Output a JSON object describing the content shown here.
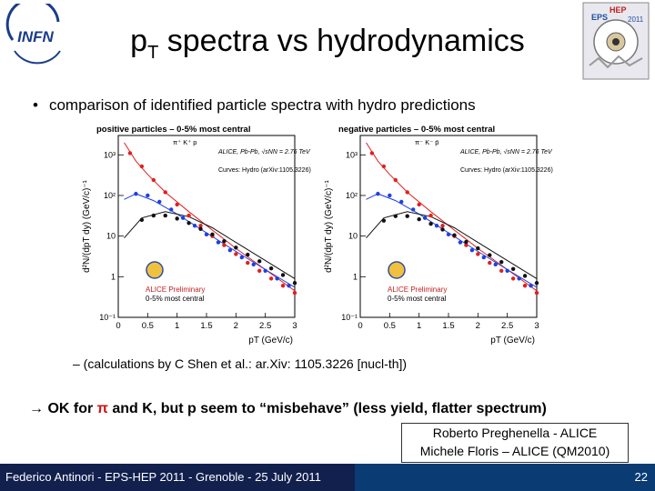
{
  "slide": {
    "title_main": "p",
    "title_sub": "T",
    "title_rest": " spectra vs hydrodynamics",
    "bullet": "comparison of identified particle spectra with hydro predictions",
    "bullet_marker": "•",
    "sub_bullet": "–  (calculations by C Shen et al.: ar.Xiv: 1105.3226 [nucl-th])",
    "conclusion": {
      "arrow": "→",
      "part1": " OK for ",
      "pi": "π",
      "part2": " and K, but p seem to “misbehave” (less yield, flatter spectrum)"
    },
    "credit_line1": "Roberto Preghenella - ALICE",
    "credit_line2": "Michele Floris – ALICE (QM2010)",
    "footer": "Federico Antinori - EPS-HEP 2011 - Grenoble - 25 July 2011",
    "page_number": "22"
  },
  "logos": {
    "infn_text": "INFN",
    "eps_text": "EPS",
    "hep_text": "HEP",
    "year_text": "2011"
  },
  "chart_data": [
    {
      "type": "scatter",
      "title": "positive particles – 0-5% most central",
      "legend": "π⁺ K⁺ p",
      "annotation1": "ALICE, Pb-Pb, √sNN = 2.76 TeV",
      "annotation2": "Curves: Hydro (arXiv:1105.3226)",
      "annotation3": "ALICE Preliminary",
      "annotation4": "0-5% most central",
      "xlabel": "pT (GeV/c)",
      "ylabel": "d²N/(dpT dy) (GeV/c)⁻¹",
      "x_ticks": [
        "0",
        "0.5",
        "1",
        "1.5",
        "2",
        "2.5",
        "3"
      ],
      "y_ticks": [
        "10⁻¹",
        "1",
        "10",
        "10²",
        "10³"
      ],
      "xlim": [
        0,
        3
      ],
      "ylim": [
        0.1,
        3000
      ],
      "log_y": true,
      "series": [
        {
          "name": "π⁺",
          "color": "#e02020",
          "x": [
            0.2,
            0.4,
            0.6,
            0.8,
            1.0,
            1.2,
            1.4,
            1.6,
            1.8,
            2.0,
            2.2,
            2.4,
            2.6,
            2.8,
            3.0
          ],
          "y": [
            1100,
            520,
            240,
            120,
            60,
            32,
            18,
            10,
            6,
            3.6,
            2.2,
            1.4,
            0.9,
            0.6,
            0.4
          ]
        },
        {
          "name": "K⁺",
          "color": "#2040e0",
          "x": [
            0.3,
            0.5,
            0.7,
            0.9,
            1.1,
            1.3,
            1.5,
            1.7,
            1.9,
            2.1,
            2.3,
            2.5,
            2.7,
            2.9
          ],
          "y": [
            110,
            100,
            70,
            45,
            28,
            18,
            11,
            7,
            4.5,
            3,
            2,
            1.4,
            0.9,
            0.6
          ]
        },
        {
          "name": "p",
          "color": "#111111",
          "x": [
            0.4,
            0.6,
            0.8,
            1.0,
            1.2,
            1.4,
            1.6,
            1.8,
            2.0,
            2.2,
            2.4,
            2.6,
            2.8,
            3.0
          ],
          "y": [
            25,
            32,
            32,
            27,
            21,
            15,
            11,
            7.5,
            5.2,
            3.5,
            2.4,
            1.6,
            1.1,
            0.7
          ]
        }
      ],
      "curves": [
        {
          "name": "π⁺",
          "color": "#e02020",
          "x": [
            0.1,
            0.3,
            0.5,
            0.8,
            1.2,
            1.6,
            2.0,
            2.5,
            3.0
          ],
          "y": [
            2000,
            700,
            330,
            120,
            40,
            14,
            5,
            1.5,
            0.45
          ]
        },
        {
          "name": "K⁺",
          "color": "#2040e0",
          "x": [
            0.1,
            0.3,
            0.6,
            1.0,
            1.5,
            2.0,
            2.5,
            3.0
          ],
          "y": [
            80,
            110,
            75,
            35,
            12,
            4.2,
            1.5,
            0.55
          ]
        },
        {
          "name": "p",
          "color": "#111111",
          "x": [
            0.1,
            0.4,
            0.8,
            1.2,
            1.6,
            2.0,
            2.5,
            3.0
          ],
          "y": [
            9,
            28,
            40,
            30,
            16,
            7,
            2.5,
            0.9
          ]
        }
      ]
    },
    {
      "type": "scatter",
      "title": "negative particles – 0-5% most central",
      "legend": "π⁻ K⁻ p̄",
      "annotation1": "ALICE, Pb-Pb, √sNN = 2.76 TeV",
      "annotation2": "Curves: Hydro (arXiv:1105.3226)",
      "annotation3": "ALICE Preliminary",
      "annotation4": "0-5% most central",
      "xlabel": "pT (GeV/c)",
      "ylabel": "d²N/(dpT dy) (GeV/c)⁻¹",
      "x_ticks": [
        "0",
        "0.5",
        "1",
        "1.5",
        "2",
        "2.5",
        "3"
      ],
      "y_ticks": [
        "10⁻¹",
        "1",
        "10",
        "10²",
        "10³"
      ],
      "xlim": [
        0,
        3
      ],
      "ylim": [
        0.1,
        3000
      ],
      "log_y": true,
      "series": [
        {
          "name": "π⁻",
          "color": "#e02020",
          "x": [
            0.2,
            0.4,
            0.6,
            0.8,
            1.0,
            1.2,
            1.4,
            1.6,
            1.8,
            2.0,
            2.2,
            2.4,
            2.6,
            2.8,
            3.0
          ],
          "y": [
            1100,
            520,
            240,
            120,
            60,
            32,
            18,
            10,
            6,
            3.6,
            2.2,
            1.4,
            0.9,
            0.6,
            0.4
          ]
        },
        {
          "name": "K⁻",
          "color": "#2040e0",
          "x": [
            0.3,
            0.5,
            0.7,
            0.9,
            1.1,
            1.3,
            1.5,
            1.7,
            1.9,
            2.1,
            2.3,
            2.5,
            2.7,
            2.9
          ],
          "y": [
            110,
            100,
            70,
            45,
            28,
            18,
            11,
            7,
            4.5,
            3,
            2,
            1.4,
            0.9,
            0.6
          ]
        },
        {
          "name": "p̄",
          "color": "#111111",
          "x": [
            0.4,
            0.6,
            0.8,
            1.0,
            1.2,
            1.4,
            1.6,
            1.8,
            2.0,
            2.2,
            2.4,
            2.6,
            2.8,
            3.0
          ],
          "y": [
            24,
            31,
            31,
            26,
            20,
            14.5,
            10.5,
            7.2,
            5,
            3.4,
            2.3,
            1.55,
            1.05,
            0.7
          ]
        }
      ],
      "curves": [
        {
          "name": "π⁻",
          "color": "#e02020",
          "x": [
            0.1,
            0.3,
            0.5,
            0.8,
            1.2,
            1.6,
            2.0,
            2.5,
            3.0
          ],
          "y": [
            2000,
            700,
            330,
            120,
            40,
            14,
            5,
            1.5,
            0.45
          ]
        },
        {
          "name": "K⁻",
          "color": "#2040e0",
          "x": [
            0.1,
            0.3,
            0.6,
            1.0,
            1.5,
            2.0,
            2.5,
            3.0
          ],
          "y": [
            80,
            110,
            75,
            35,
            12,
            4.2,
            1.5,
            0.55
          ]
        },
        {
          "name": "p̄",
          "color": "#111111",
          "x": [
            0.1,
            0.4,
            0.8,
            1.2,
            1.6,
            2.0,
            2.5,
            3.0
          ],
          "y": [
            9,
            28,
            40,
            30,
            16,
            7,
            2.5,
            0.9
          ]
        }
      ]
    }
  ]
}
